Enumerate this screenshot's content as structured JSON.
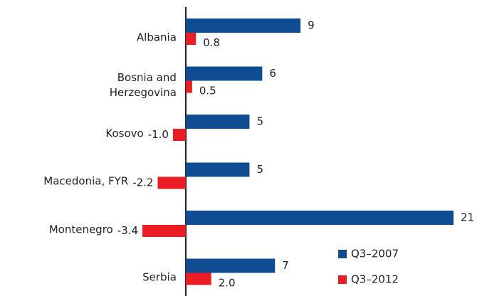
{
  "chart_data": {
    "type": "hbar",
    "categories": [
      "Albania",
      "Bosnia and Herzegovina",
      "Kosovo",
      "Macedonia, FYR",
      "Montenegro",
      "Serbia"
    ],
    "series": [
      {
        "name": "Q3–2007",
        "color": "#0f4c92",
        "values": [
          9,
          6,
          5,
          5,
          21,
          7
        ]
      },
      {
        "name": "Q3–2012",
        "color": "#ec1c24",
        "values": [
          0.8,
          0.5,
          -1.0,
          -2.2,
          -3.4,
          2.0
        ],
        "value_labels": [
          "0.8",
          "0.5",
          "-1.0",
          "-2.2",
          "-3.4",
          "2.0"
        ]
      }
    ],
    "legend": "lower right"
  }
}
